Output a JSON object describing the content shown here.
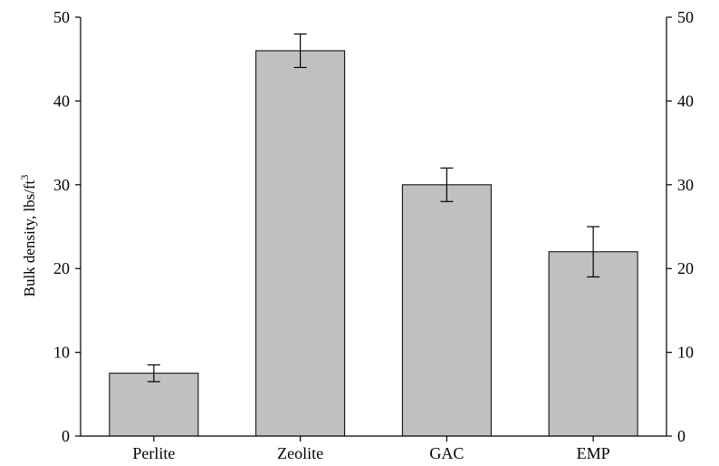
{
  "chart_data": {
    "type": "bar",
    "categories": [
      "Perlite",
      "Zeolite",
      "GAC",
      "EMP"
    ],
    "values": [
      7.5,
      46,
      30,
      22
    ],
    "error_low": [
      6.5,
      44,
      28,
      19
    ],
    "error_high": [
      8.5,
      48,
      32,
      25
    ],
    "ylabel_main": "Bulk density, lbs/ft",
    "ylabel_sup": "3",
    "ylim": [
      0,
      50
    ],
    "yticks": [
      0,
      10,
      20,
      30,
      40,
      50
    ],
    "secondary_y_axis": true,
    "grid": false,
    "bar_color": "#c0c0c0"
  }
}
